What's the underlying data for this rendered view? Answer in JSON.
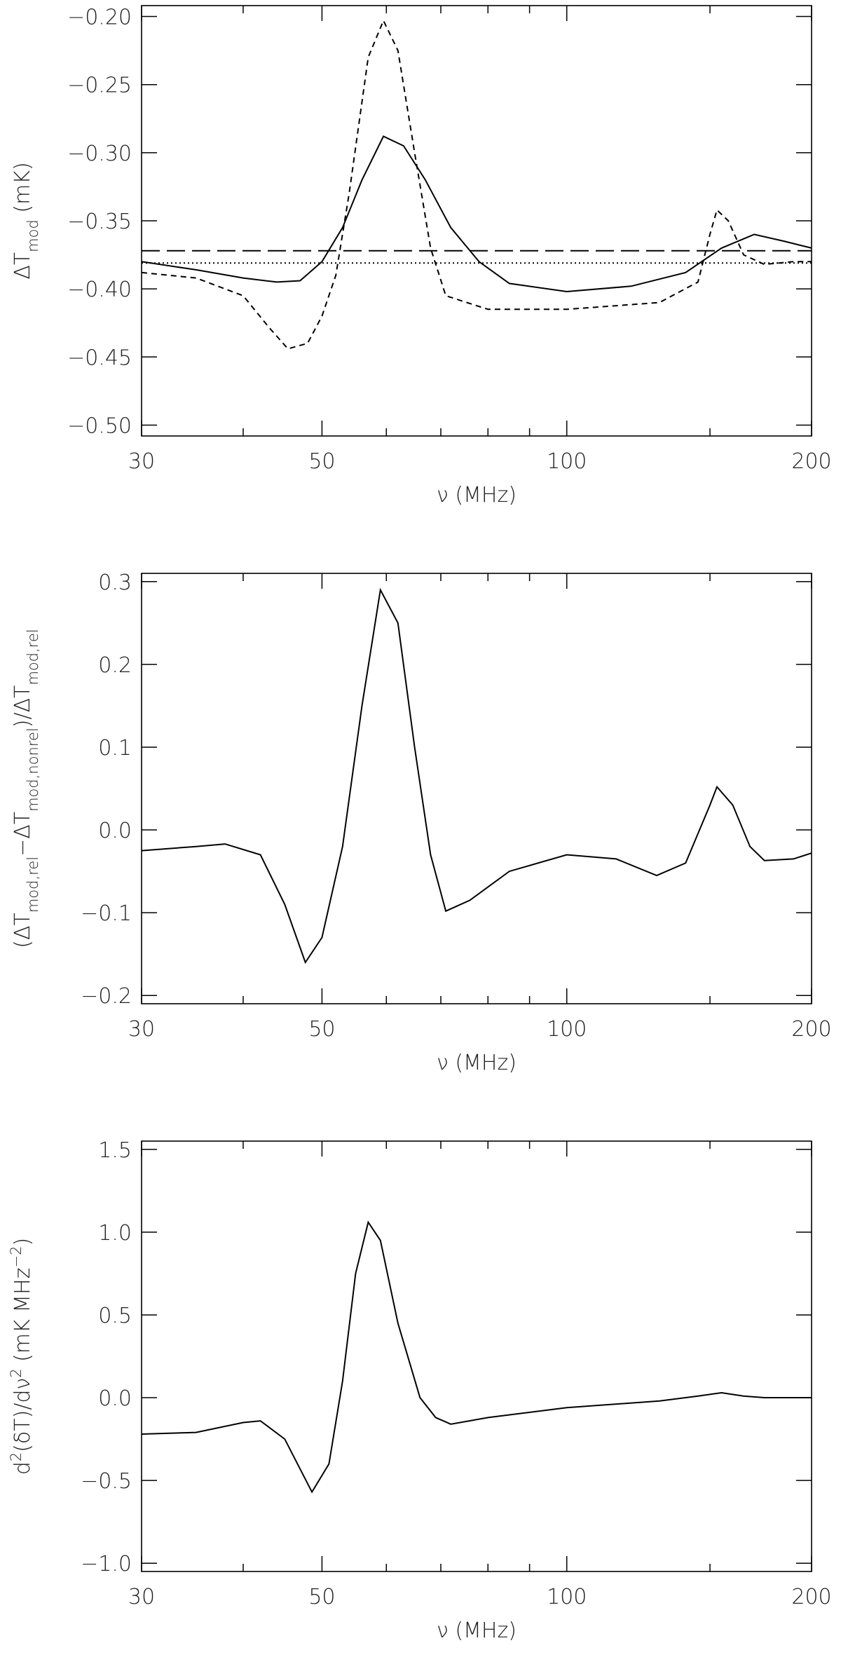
{
  "chart_data": [
    {
      "type": "line",
      "log_x": true,
      "xlim": [
        30,
        200
      ],
      "xticks": [
        30,
        50,
        100,
        200
      ],
      "xminorticks": [
        40,
        60,
        70,
        80,
        90,
        150
      ],
      "ylim": [
        -0.508,
        -0.192
      ],
      "yticks": [
        {
          "value": -0.5,
          "label": "−0.50"
        },
        {
          "value": -0.45,
          "label": "−0.45"
        },
        {
          "value": -0.4,
          "label": "−0.40"
        },
        {
          "value": -0.35,
          "label": "−0.35"
        },
        {
          "value": -0.3,
          "label": "−0.30"
        },
        {
          "value": -0.25,
          "label": "−0.25"
        },
        {
          "value": -0.2,
          "label": "−0.20"
        }
      ],
      "xlabel": "ν (MHz)",
      "ylabel_parts": [
        {
          "text": "ΔT"
        },
        {
          "text": "mod",
          "shift": "sub"
        },
        {
          "text": " (mK)"
        }
      ],
      "series": [
        {
          "color": "#000000",
          "dash": "solid",
          "x": [
            30,
            35,
            40,
            44,
            47,
            50,
            53,
            56,
            59.5,
            63,
            67,
            72,
            78,
            85,
            100,
            120,
            140,
            155,
            170,
            185,
            200
          ],
          "values": [
            -0.38,
            -0.386,
            -0.392,
            -0.395,
            -0.394,
            -0.38,
            -0.355,
            -0.32,
            -0.288,
            -0.295,
            -0.32,
            -0.355,
            -0.38,
            -0.396,
            -0.402,
            -0.398,
            -0.388,
            -0.37,
            -0.36,
            -0.365,
            -0.37
          ]
        },
        {
          "color": "#000000",
          "dash": "short",
          "x": [
            30,
            35,
            40,
            43,
            45.4,
            48,
            50,
            52,
            54,
            57,
            59.5,
            62,
            65,
            68,
            71,
            80,
            100,
            130,
            145,
            150,
            153,
            158,
            165,
            175,
            190,
            200
          ],
          "values": [
            -0.388,
            -0.392,
            -0.405,
            -0.428,
            -0.444,
            -0.44,
            -0.42,
            -0.39,
            -0.33,
            -0.23,
            -0.203,
            -0.225,
            -0.3,
            -0.37,
            -0.405,
            -0.415,
            -0.415,
            -0.41,
            -0.395,
            -0.36,
            -0.342,
            -0.35,
            -0.375,
            -0.382,
            -0.38,
            -0.38
          ]
        },
        {
          "color": "#000000",
          "dash": "long",
          "x": [
            30,
            200
          ],
          "values": [
            -0.372,
            -0.372
          ]
        },
        {
          "color": "#000000",
          "dash": "dotted",
          "x": [
            30,
            200
          ],
          "values": [
            -0.381,
            -0.381
          ]
        }
      ]
    },
    {
      "type": "line",
      "log_x": true,
      "xlim": [
        30,
        200
      ],
      "xticks": [
        30,
        50,
        100,
        200
      ],
      "xminorticks": [
        40,
        60,
        70,
        80,
        90,
        150
      ],
      "ylim": [
        -0.21,
        0.31
      ],
      "yticks": [
        {
          "value": -0.2,
          "label": "−0.2"
        },
        {
          "value": -0.1,
          "label": "−0.1"
        },
        {
          "value": 0,
          "label": "0.0"
        },
        0.1,
        0.2,
        0.3
      ],
      "xlabel": "ν (MHz)",
      "ylabel_parts": [
        {
          "text": "(ΔT"
        },
        {
          "text": "mod,rel",
          "shift": "sub"
        },
        {
          "text": "−ΔT"
        },
        {
          "text": "mod,nonrel",
          "shift": "sub"
        },
        {
          "text": ")/ΔT"
        },
        {
          "text": "mod,rel",
          "shift": "sub"
        }
      ],
      "series": [
        {
          "color": "#000000",
          "dash": "solid",
          "x": [
            30,
            35,
            38,
            42,
            45,
            47.7,
            50,
            53,
            56,
            59,
            62,
            65,
            68,
            71,
            76,
            85,
            100,
            115,
            129,
            140,
            150,
            153,
            160,
            168,
            175,
            190,
            200
          ],
          "values": [
            -0.025,
            -0.02,
            -0.017,
            -0.03,
            -0.09,
            -0.16,
            -0.13,
            -0.02,
            0.15,
            0.29,
            0.25,
            0.1,
            -0.03,
            -0.098,
            -0.085,
            -0.05,
            -0.03,
            -0.035,
            -0.055,
            -0.04,
            0.03,
            0.052,
            0.03,
            -0.02,
            -0.037,
            -0.035,
            -0.028
          ]
        }
      ]
    },
    {
      "type": "line",
      "log_x": true,
      "xlim": [
        30,
        200
      ],
      "xticks": [
        30,
        50,
        100,
        200
      ],
      "xminorticks": [
        40,
        60,
        70,
        80,
        90,
        150
      ],
      "ylim": [
        -1.05,
        1.55
      ],
      "yticks": [
        {
          "value": -1,
          "label": "−1.0"
        },
        {
          "value": -0.5,
          "label": "−0.5"
        },
        {
          "value": 0,
          "label": "0.0"
        },
        0.5,
        {
          "value": 1,
          "label": "1.0"
        },
        1.5
      ],
      "xlabel": "ν (MHz)",
      "ylabel_parts": [
        {
          "text": "d"
        },
        {
          "text": "2",
          "shift": "super"
        },
        {
          "text": "(δT)/dν"
        },
        {
          "text": "2",
          "shift": "super"
        },
        {
          "text": " (mK MHz"
        },
        {
          "text": "−2",
          "shift": "super"
        },
        {
          "text": ")"
        }
      ],
      "series": [
        {
          "color": "#000000",
          "dash": "solid",
          "x": [
            30,
            35,
            40,
            42,
            45,
            48.6,
            51,
            53,
            55,
            57,
            59,
            62,
            66,
            69,
            72,
            80,
            100,
            130,
            145,
            155,
            165,
            175,
            200
          ],
          "values": [
            -0.22,
            -0.21,
            -0.15,
            -0.14,
            -0.25,
            -0.57,
            -0.4,
            0.1,
            0.75,
            1.06,
            0.95,
            0.45,
            0.0,
            -0.12,
            -0.16,
            -0.12,
            -0.06,
            -0.02,
            0.01,
            0.03,
            0.01,
            0.0,
            0.0
          ]
        }
      ]
    }
  ]
}
